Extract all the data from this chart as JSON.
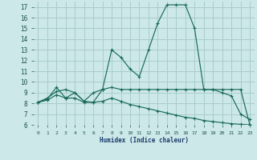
{
  "xlabel": "Humidex (Indice chaleur)",
  "bg_color": "#cce8e8",
  "grid_color": "#aacccc",
  "line_color": "#1a6b5a",
  "xlim": [
    -0.5,
    23.5
  ],
  "ylim": [
    6,
    17.5
  ],
  "yticks": [
    6,
    7,
    8,
    9,
    10,
    11,
    12,
    13,
    14,
    15,
    16,
    17
  ],
  "xticks": [
    0,
    1,
    2,
    3,
    4,
    5,
    6,
    7,
    8,
    9,
    10,
    11,
    12,
    13,
    14,
    15,
    16,
    17,
    18,
    19,
    20,
    21,
    22,
    23
  ],
  "xtick_labels": [
    "0",
    "1",
    "2",
    "3",
    "4",
    "5",
    "6",
    "7",
    "8",
    "9",
    "10",
    "11",
    "12",
    "13",
    "14",
    "15",
    "16",
    "17",
    "18",
    "19",
    "20",
    "21",
    "22",
    "23"
  ],
  "line1_x": [
    0,
    1,
    2,
    3,
    4,
    5,
    6,
    7,
    8,
    9,
    10,
    11,
    12,
    13,
    14,
    15,
    16,
    17,
    18,
    19,
    20,
    21,
    22,
    23
  ],
  "line1_y": [
    8.1,
    8.4,
    9.5,
    8.5,
    9.0,
    8.2,
    8.1,
    9.3,
    13.0,
    12.3,
    11.2,
    10.5,
    13.0,
    15.5,
    17.2,
    17.2,
    17.2,
    15.0,
    9.3,
    9.3,
    9.0,
    8.7,
    7.0,
    6.5
  ],
  "line2_x": [
    0,
    1,
    2,
    3,
    4,
    5,
    6,
    7,
    8,
    9,
    10,
    11,
    12,
    13,
    14,
    15,
    16,
    17,
    18,
    19,
    20,
    21,
    22,
    23
  ],
  "line2_y": [
    8.1,
    8.5,
    9.1,
    9.3,
    9.0,
    8.2,
    9.0,
    9.3,
    9.5,
    9.3,
    9.3,
    9.3,
    9.3,
    9.3,
    9.3,
    9.3,
    9.3,
    9.3,
    9.3,
    9.3,
    9.3,
    9.3,
    9.3,
    6.0
  ],
  "line3_x": [
    0,
    1,
    2,
    3,
    4,
    5,
    6,
    7,
    8,
    9,
    10,
    11,
    12,
    13,
    14,
    15,
    16,
    17,
    18,
    19,
    20,
    21,
    22,
    23
  ],
  "line3_y": [
    8.1,
    8.3,
    8.8,
    8.5,
    8.5,
    8.1,
    8.1,
    8.2,
    8.5,
    8.2,
    7.9,
    7.7,
    7.5,
    7.3,
    7.1,
    6.9,
    6.7,
    6.6,
    6.4,
    6.3,
    6.2,
    6.1,
    6.05,
    6.0
  ]
}
